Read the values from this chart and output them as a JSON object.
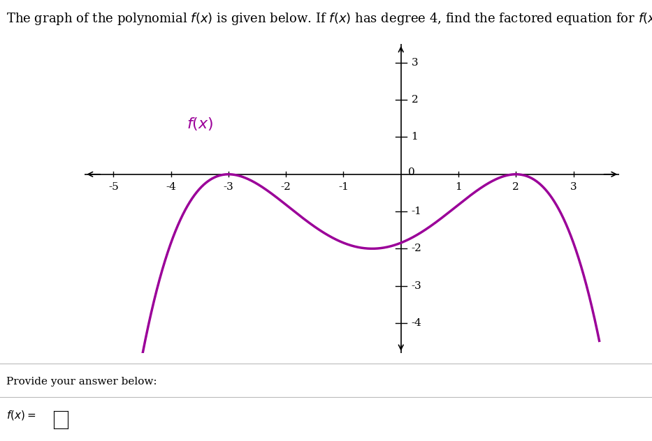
{
  "title_text": "The graph of the polynomial $f(x)$ is given below. If $f(x)$ has degree 4, find the factored equation for $f(x)$.",
  "func_label": "$f(x)$",
  "func_label_color": "#9B0099",
  "curve_color": "#9B0099",
  "curve_linewidth": 2.5,
  "xlim": [
    -5.5,
    3.8
  ],
  "ylim": [
    -4.8,
    3.5
  ],
  "xticks": [
    -5,
    -4,
    -3,
    -2,
    -1,
    1,
    2,
    3
  ],
  "yticks": [
    -4,
    -3,
    -2,
    -1,
    1,
    2,
    3
  ],
  "background_color": "#ffffff",
  "leading_coeff": -0.05119,
  "provide_text": "Provide your answer below:",
  "title_fontsize": 13,
  "label_fontsize": 16,
  "tick_fontsize": 11
}
